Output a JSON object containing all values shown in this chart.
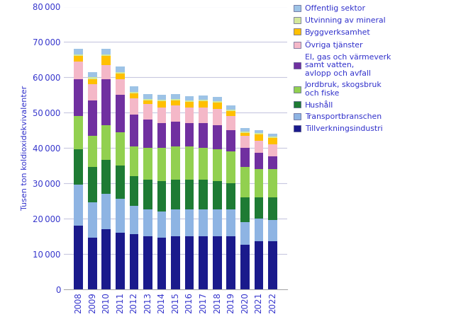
{
  "years": [
    2008,
    2009,
    2010,
    2011,
    2012,
    2013,
    2014,
    2015,
    2016,
    2017,
    2018,
    2019,
    2020,
    2021,
    2022
  ],
  "series": {
    "Tillverkningsindustri": [
      18000,
      14500,
      17000,
      16000,
      15500,
      15000,
      14500,
      15000,
      15000,
      15000,
      15000,
      15000,
      12500,
      13500,
      13500
    ],
    "Transportbranschen": [
      11500,
      10000,
      10000,
      9500,
      8000,
      7500,
      7500,
      7500,
      7500,
      7500,
      7500,
      7500,
      6500,
      6500,
      6000
    ],
    "Hushåll": [
      10000,
      10000,
      9500,
      9500,
      8500,
      8500,
      8500,
      8500,
      8500,
      8500,
      8000,
      7500,
      7000,
      6000,
      6500
    ],
    "Jordbruk, skogsbruk och fiske": [
      9500,
      9000,
      10000,
      9500,
      8500,
      9000,
      9500,
      9500,
      9500,
      9000,
      9000,
      9000,
      8500,
      8000,
      8000
    ],
    "El, gas och värmeverk samt vatten, avlopp och avfall": [
      10500,
      10000,
      13000,
      10500,
      9000,
      8000,
      7000,
      7000,
      6500,
      7000,
      7000,
      6000,
      5500,
      4500,
      3500
    ],
    "Övriga tjänster": [
      5000,
      4500,
      4000,
      4500,
      4500,
      4500,
      4500,
      4500,
      4500,
      4500,
      4500,
      4000,
      3500,
      3500,
      3500
    ],
    "Byggverksamhet": [
      1500,
      1500,
      2500,
      1500,
      1500,
      1000,
      1800,
      1500,
      1500,
      1800,
      1800,
      1500,
      800,
      1800,
      1800
    ],
    "Utvinning av mineral": [
      500,
      500,
      500,
      500,
      400,
      400,
      400,
      400,
      400,
      400,
      400,
      400,
      300,
      400,
      400
    ],
    "Offentlig sektor": [
      1500,
      1500,
      1500,
      1500,
      1500,
      1400,
      1300,
      1300,
      1200,
      1200,
      1200,
      1100,
      1000,
      900,
      900
    ]
  },
  "colors": {
    "Tillverkningsindustri": "#1a1a8c",
    "Transportbranschen": "#8eb4e3",
    "Hushåll": "#1e7b34",
    "Jordbruk, skogsbruk och fiske": "#92d050",
    "El, gas och värmeverk samt vatten, avlopp och avfall": "#7030a0",
    "Övriga tjänster": "#f4b8c8",
    "Byggverksamhet": "#ffc000",
    "Utvinning av mineral": "#d4e89a",
    "Offentlig sektor": "#9dc3e6"
  },
  "series_order": [
    "Tillverkningsindustri",
    "Transportbranschen",
    "Hushåll",
    "Jordbruk, skogsbruk och fiske",
    "El, gas och värmeverk samt vatten, avlopp och avfall",
    "Övriga tjänster",
    "Byggverksamhet",
    "Utvinning av mineral",
    "Offentlig sektor"
  ],
  "legend_display": {
    "Tillverkningsindustri": "Tillverkningsindustri",
    "Transportbranschen": "Transportbranschen",
    "Hushåll": "Hushåll",
    "Jordbruk, skogsbruk och fiske": "Jordbruk, skogsbruk\noch fiske",
    "El, gas och värmeverk samt vatten, avlopp och avfall": "El, gas och värmeverk\nsamt vatten,\navlopp och avfall",
    "Övriga tjänster": "Övriga tjänster",
    "Byggverksamhet": "Byggverksamhet",
    "Utvinning av mineral": "Utvinning av mineral",
    "Offentlig sektor": "Offentlig sektor"
  },
  "ylabel": "Tusen ton koldioxidekvivalenter",
  "ylim": [
    0,
    80000
  ],
  "yticks": [
    0,
    10000,
    20000,
    30000,
    40000,
    50000,
    60000,
    70000,
    80000
  ],
  "text_color": "#3333cc",
  "grid_color": "#c8c8e0",
  "bar_width": 0.65,
  "figsize": [
    6.43,
    4.75
  ],
  "dpi": 100
}
